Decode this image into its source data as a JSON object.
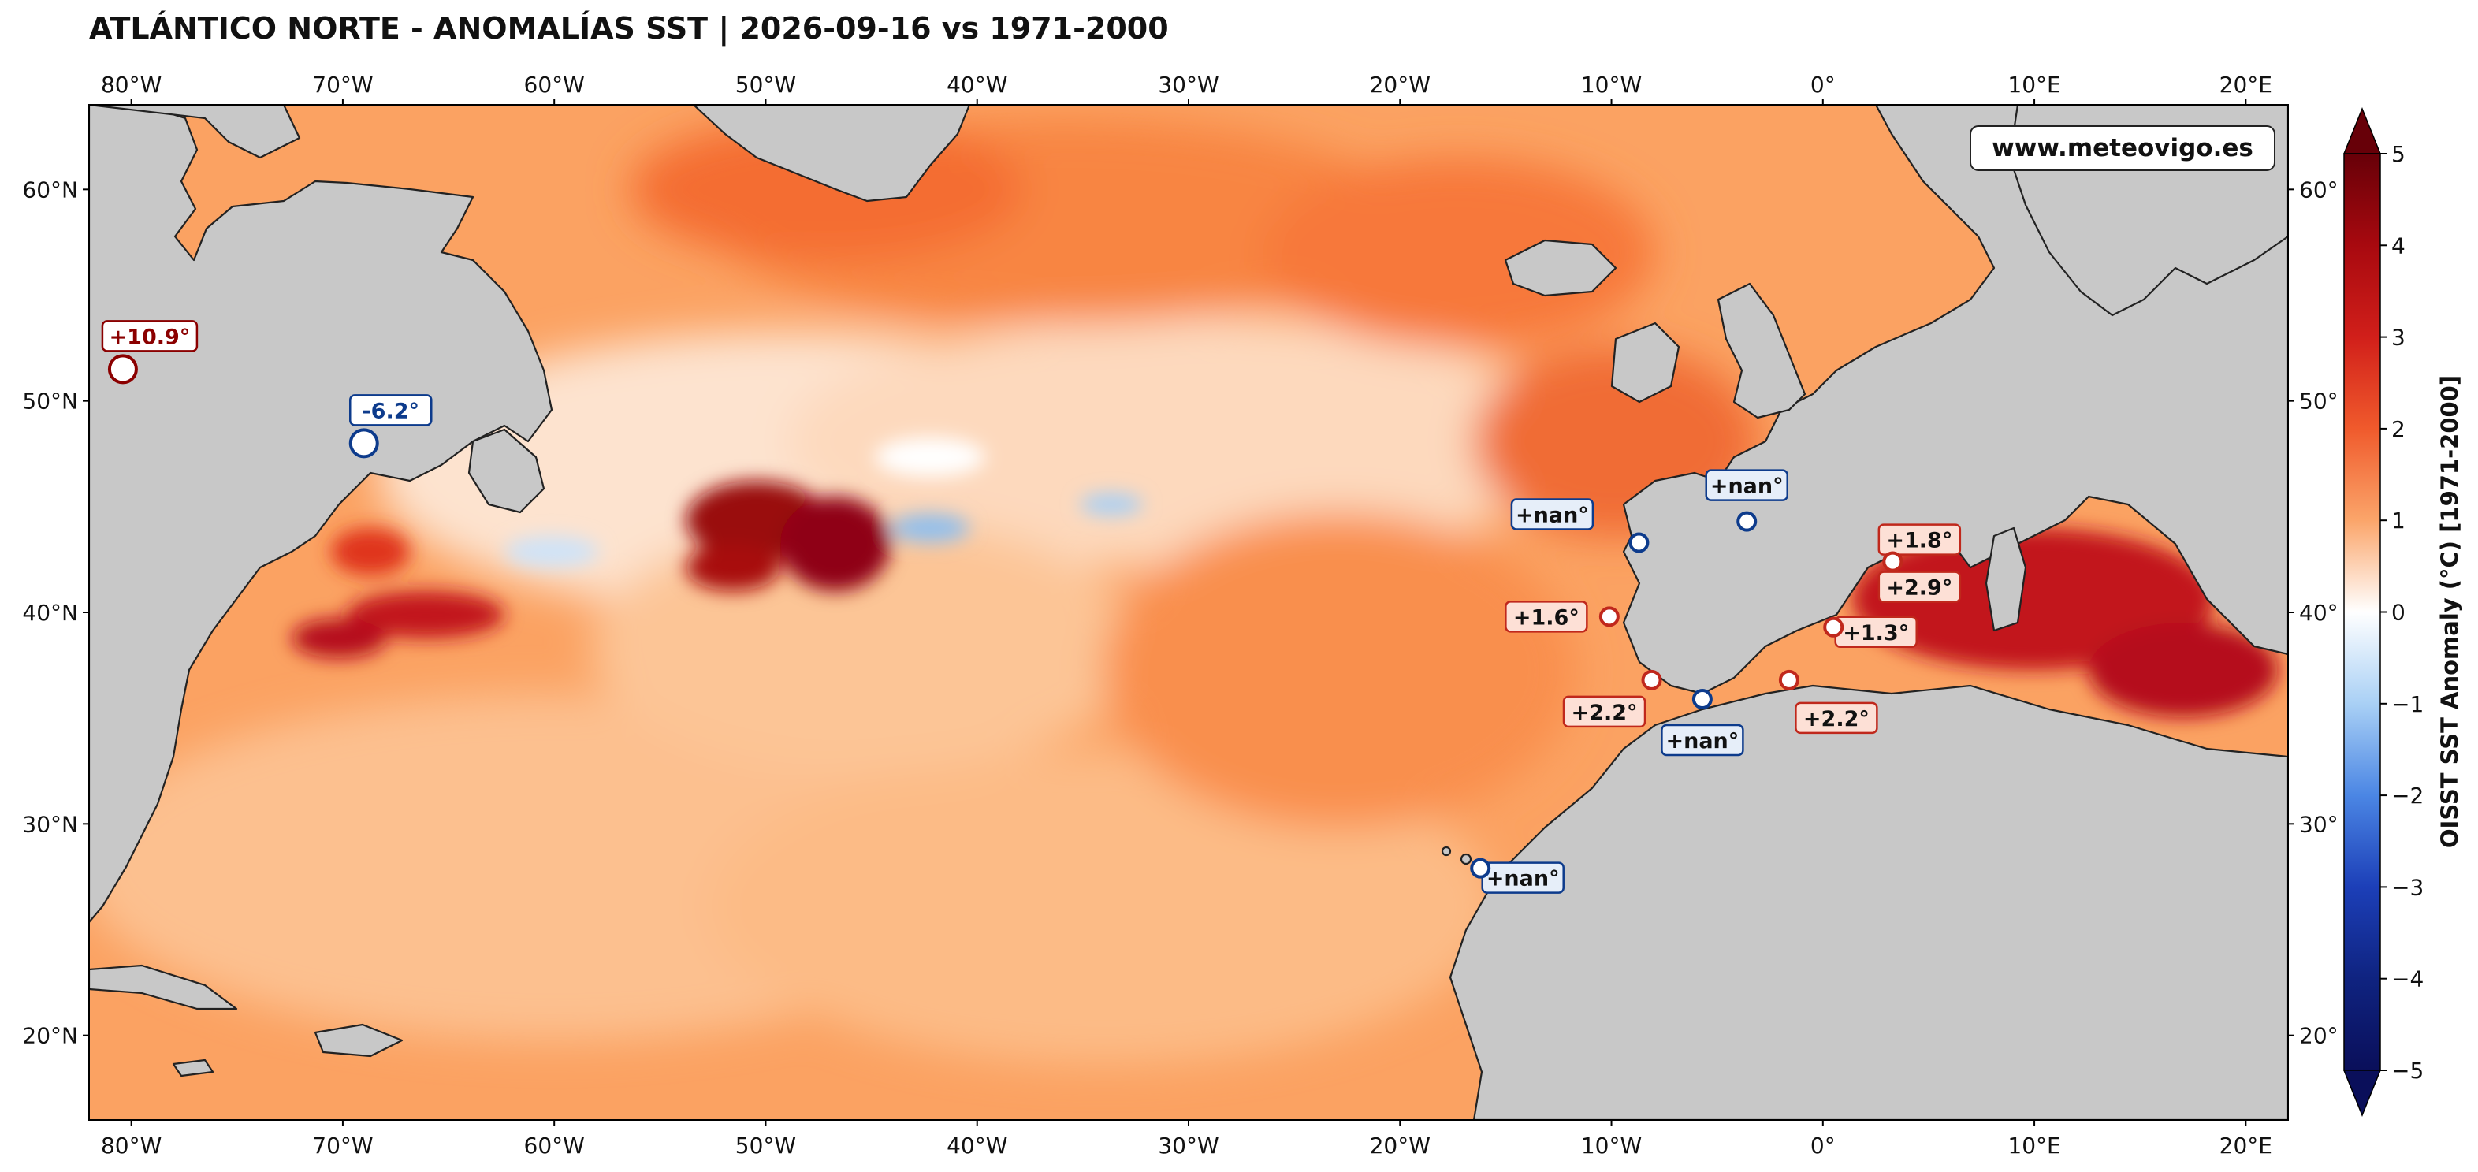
{
  "title": "ATLÁNTICO NORTE - ANOMALÍAS SST | 2026-09-16 vs 1971-2000",
  "watermark": "www.meteovigo.es",
  "map": {
    "lon_ticks": [
      "80°W",
      "70°W",
      "60°W",
      "50°W",
      "40°W",
      "30°W",
      "20°W",
      "10°W",
      "0°",
      "10°E",
      "20°E"
    ],
    "lat_ticks": [
      "60°N",
      "50°N",
      "40°N",
      "30°N",
      "20°N"
    ],
    "right_lat_ticks": [
      "60°",
      "50°",
      "40°",
      "30°",
      "20°"
    ],
    "lon_values": [
      -80,
      -70,
      -60,
      -50,
      -40,
      -30,
      -20,
      -10,
      0,
      10,
      20
    ],
    "lat_values": [
      60,
      50,
      40,
      30,
      20
    ],
    "extent": {
      "lon": [
        -82,
        22
      ],
      "lat": [
        16,
        64
      ]
    }
  },
  "colorbar": {
    "label": "OISST SST Anomaly (°C) [1971-2000]",
    "ticks": [
      "5",
      "4",
      "3",
      "2",
      "1",
      "0",
      "−1",
      "−2",
      "−3",
      "−4",
      "−5"
    ],
    "range": [
      -5,
      5
    ],
    "colormap": [
      "#0a0f5a",
      "#1c3fb8",
      "#4b86e4",
      "#a9d0f5",
      "#ffffff",
      "#fccda5",
      "#f98a45",
      "#e23a1c",
      "#a8090f",
      "#670008"
    ]
  },
  "stations": [
    {
      "label": "+10.9°",
      "lon": -80.4,
      "lat": 51.5,
      "type": "warm-extreme"
    },
    {
      "label": "-6.2°",
      "lon": -69.0,
      "lat": 48.0,
      "type": "cold-extreme"
    },
    {
      "label": "+nan°",
      "lon": -8.7,
      "lat": 43.3,
      "type": "nan"
    },
    {
      "label": "+nan°",
      "lon": -3.6,
      "lat": 44.3,
      "type": "nan"
    },
    {
      "label": "+1.6°",
      "lon": -10.1,
      "lat": 39.8,
      "type": "warm"
    },
    {
      "label": "+1.8°",
      "lon": 3.3,
      "lat": 42.4,
      "type": "warm"
    },
    {
      "label": "+2.9°",
      "lon": 3.3,
      "lat": 42.4,
      "type": "warm"
    },
    {
      "label": "+1.3°",
      "lon": 0.5,
      "lat": 39.3,
      "type": "warm"
    },
    {
      "label": "+2.2°",
      "lon": -8.1,
      "lat": 36.8,
      "type": "warm"
    },
    {
      "label": "+nan°",
      "lon": -5.7,
      "lat": 35.9,
      "type": "nan"
    },
    {
      "label": "+2.2°",
      "lon": -1.6,
      "lat": 36.8,
      "type": "warm"
    },
    {
      "label": "+nan°",
      "lon": -16.2,
      "lat": 27.9,
      "type": "nan"
    }
  ]
}
